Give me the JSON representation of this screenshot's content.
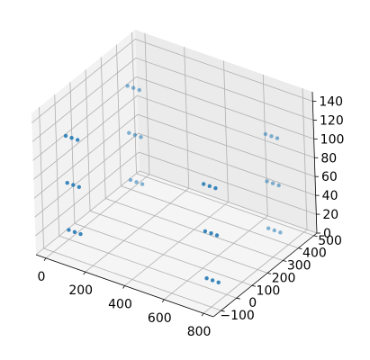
{
  "chart_data": {
    "type": "scatter",
    "projection": "3d",
    "grid": true,
    "point_color": "#1f77b4",
    "xlim": [
      -50,
      850
    ],
    "ylim": [
      -150,
      520
    ],
    "zlim": [
      0,
      150
    ],
    "xticks": [
      "0",
      "200",
      "400",
      "600",
      "800"
    ],
    "yticks": [
      "−100",
      "0",
      "100",
      "200",
      "300",
      "400",
      "500"
    ],
    "zticks": [
      "0",
      "20",
      "40",
      "60",
      "80",
      "100",
      "120",
      "140"
    ],
    "series": [
      {
        "points": [
          {
            "x": 0,
            "y": 0,
            "z": 10
          },
          {
            "x": 30,
            "y": 0,
            "z": 10
          },
          {
            "x": 60,
            "y": 0,
            "z": 10
          },
          {
            "x": 0,
            "y": 0,
            "z": 60
          },
          {
            "x": 30,
            "y": 0,
            "z": 60
          },
          {
            "x": 60,
            "y": 0,
            "z": 60
          },
          {
            "x": 0,
            "y": 0,
            "z": 110
          },
          {
            "x": 30,
            "y": 0,
            "z": 110
          },
          {
            "x": 60,
            "y": 0,
            "z": 110
          },
          {
            "x": 0,
            "y": 400,
            "z": 10
          },
          {
            "x": 30,
            "y": 400,
            "z": 10
          },
          {
            "x": 60,
            "y": 400,
            "z": 10
          },
          {
            "x": 0,
            "y": 400,
            "z": 60
          },
          {
            "x": 30,
            "y": 400,
            "z": 60
          },
          {
            "x": 60,
            "y": 400,
            "z": 60
          },
          {
            "x": 0,
            "y": 400,
            "z": 110
          },
          {
            "x": 30,
            "y": 400,
            "z": 110
          },
          {
            "x": 60,
            "y": 400,
            "z": 110
          },
          {
            "x": 700,
            "y": 0,
            "z": 10
          },
          {
            "x": 730,
            "y": 0,
            "z": 10
          },
          {
            "x": 760,
            "y": 0,
            "z": 10
          },
          {
            "x": 700,
            "y": 0,
            "z": 60
          },
          {
            "x": 730,
            "y": 0,
            "z": 60
          },
          {
            "x": 760,
            "y": 0,
            "z": 60
          },
          {
            "x": 700,
            "y": 0,
            "z": 110
          },
          {
            "x": 730,
            "y": 0,
            "z": 110
          },
          {
            "x": 760,
            "y": 0,
            "z": 110
          },
          {
            "x": 700,
            "y": 400,
            "z": 10
          },
          {
            "x": 730,
            "y": 400,
            "z": 10
          },
          {
            "x": 760,
            "y": 400,
            "z": 10
          },
          {
            "x": 700,
            "y": 400,
            "z": 60
          },
          {
            "x": 730,
            "y": 400,
            "z": 60
          },
          {
            "x": 760,
            "y": 400,
            "z": 60
          },
          {
            "x": 700,
            "y": 400,
            "z": 110
          },
          {
            "x": 730,
            "y": 400,
            "z": 110
          },
          {
            "x": 760,
            "y": 400,
            "z": 110
          }
        ]
      }
    ]
  }
}
